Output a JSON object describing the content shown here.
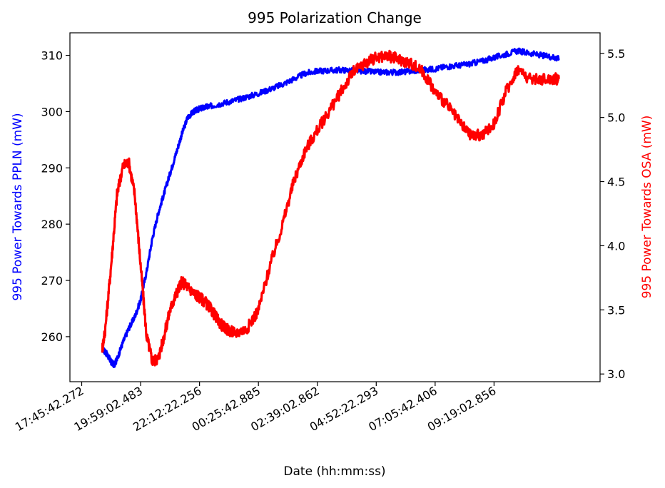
{
  "chart_data": {
    "type": "line",
    "title": "995 Polarization Change",
    "xlabel": "Date (hh:mm:ss)",
    "x_tick_labels": [
      "17:45:42.272",
      "19:59:02.483",
      "22:12:22.256",
      "00:25:42.885",
      "02:39:02.862",
      "04:52:22.293",
      "07:05:42.406",
      "09:19:02.856"
    ],
    "xlim": [
      -0.2,
      8.8
    ],
    "grid": false,
    "legend": "none",
    "left_axis": {
      "label": "995 Power Towards PPLN (mW)",
      "color": "#0000ff",
      "ylim": [
        252,
        314
      ],
      "ticks": [
        260,
        270,
        280,
        290,
        300,
        310
      ]
    },
    "right_axis": {
      "label": "995 Power Towards OSA (mW)",
      "color": "#ff0000",
      "ylim": [
        2.94,
        5.66
      ],
      "ticks": [
        3.0,
        3.5,
        4.0,
        4.5,
        5.0,
        5.5
      ],
      "tick_labels": [
        "3.0",
        "3.5",
        "4.0",
        "4.5",
        "5.0",
        "5.5"
      ]
    },
    "series": [
      {
        "axis": "left",
        "color": "#0000ff",
        "x": [
          0.35,
          0.4,
          0.45,
          0.5,
          0.55,
          0.6,
          0.7,
          0.8,
          0.9,
          1.0,
          1.1,
          1.2,
          1.3,
          1.4,
          1.5,
          1.6,
          1.7,
          1.8,
          1.9,
          2.0,
          2.1,
          2.2,
          2.4,
          2.6,
          2.8,
          3.0,
          3.2,
          3.4,
          3.6,
          3.8,
          4.0,
          4.2,
          4.4,
          4.6,
          4.8,
          5.0,
          5.2,
          5.4,
          5.6,
          5.8,
          6.0,
          6.2,
          6.4,
          6.6,
          6.8,
          7.0,
          7.2,
          7.4,
          7.6,
          7.8,
          8.0,
          8.1
        ],
        "y": [
          257.8,
          257.3,
          256.5,
          255.5,
          255.0,
          256.0,
          259.0,
          261.5,
          263.5,
          266.5,
          271.5,
          277.5,
          282.0,
          285.5,
          289.0,
          292.5,
          296.0,
          299.0,
          300.0,
          300.5,
          300.8,
          301.0,
          301.5,
          302.0,
          302.6,
          303.2,
          304.0,
          304.8,
          305.8,
          306.8,
          307.2,
          307.3,
          307.4,
          307.3,
          307.2,
          307.0,
          307.0,
          307.0,
          307.2,
          307.4,
          307.6,
          308.0,
          308.2,
          308.5,
          309.0,
          309.6,
          310.2,
          310.8,
          310.4,
          310.0,
          309.7,
          309.4
        ]
      },
      {
        "axis": "right",
        "color": "#ff0000",
        "x": [
          0.35,
          0.4,
          0.5,
          0.6,
          0.7,
          0.8,
          0.9,
          1.0,
          1.1,
          1.2,
          1.3,
          1.4,
          1.5,
          1.6,
          1.7,
          1.8,
          1.9,
          2.0,
          2.1,
          2.2,
          2.3,
          2.4,
          2.5,
          2.6,
          2.8,
          3.0,
          3.2,
          3.4,
          3.6,
          3.8,
          4.0,
          4.2,
          4.4,
          4.6,
          4.8,
          5.0,
          5.2,
          5.4,
          5.6,
          5.8,
          6.0,
          6.2,
          6.4,
          6.6,
          6.8,
          7.0,
          7.2,
          7.4,
          7.6,
          7.8,
          8.0,
          8.1
        ],
        "y": [
          3.2,
          3.35,
          3.85,
          4.4,
          4.62,
          4.65,
          4.4,
          3.85,
          3.3,
          3.1,
          3.12,
          3.3,
          3.5,
          3.62,
          3.72,
          3.68,
          3.63,
          3.6,
          3.56,
          3.5,
          3.43,
          3.37,
          3.34,
          3.32,
          3.35,
          3.5,
          3.85,
          4.15,
          4.5,
          4.75,
          4.9,
          5.05,
          5.2,
          5.35,
          5.42,
          5.47,
          5.48,
          5.45,
          5.42,
          5.35,
          5.2,
          5.1,
          4.97,
          4.86,
          4.86,
          4.95,
          5.2,
          5.38,
          5.3,
          5.3,
          5.3,
          5.3
        ]
      }
    ]
  }
}
